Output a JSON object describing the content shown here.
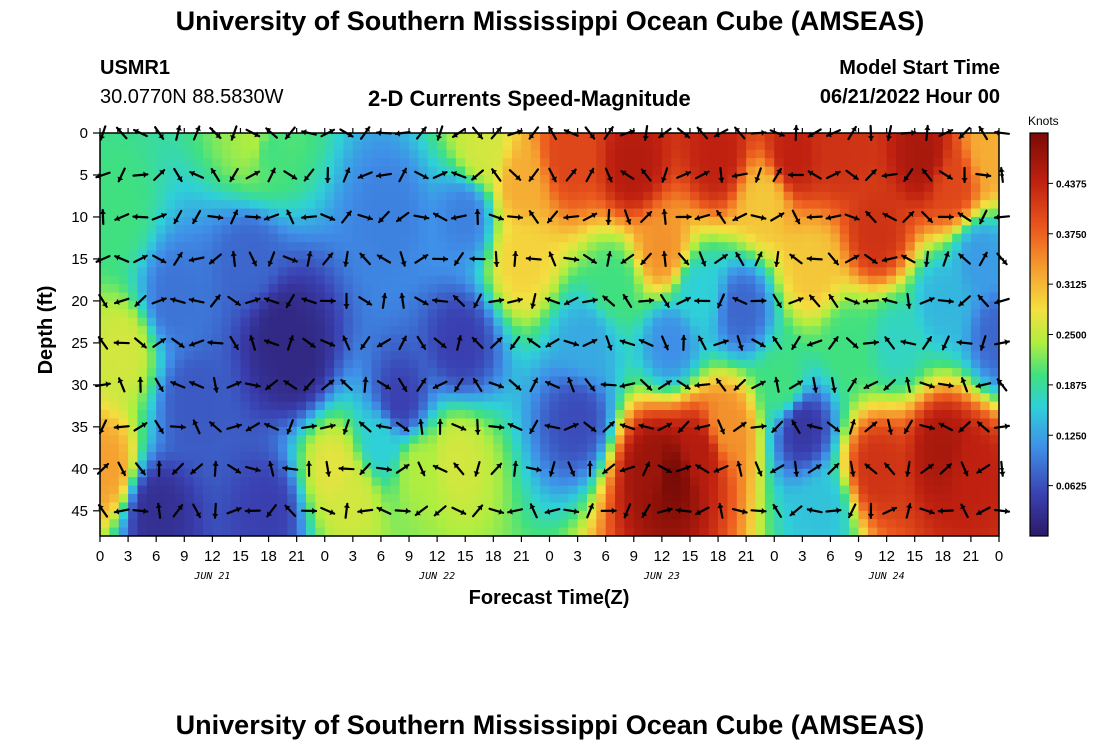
{
  "header": {
    "title_top": "University of Southern Mississippi Ocean Cube (AMSEAS)",
    "station": "USMR1",
    "coords": "30.0770N  88.5830W",
    "plot_title": "2-D Currents Speed-Magnitude",
    "start_label": "Model Start Time",
    "start_value": "06/21/2022 Hour 00",
    "title_bottom": "University of Southern Mississippi Ocean Cube (AMSEAS)"
  },
  "chart_data": {
    "type": "heatmap",
    "title": "2-D Currents Speed-Magnitude",
    "xlabel": "Forecast Time(Z)",
    "ylabel": "Depth (ft)",
    "x_hours": [
      0,
      96
    ],
    "x_ticks": [
      "0",
      "3",
      "6",
      "9",
      "12",
      "15",
      "18",
      "21",
      "0",
      "3",
      "6",
      "9",
      "12",
      "15",
      "18",
      "21",
      "0",
      "3",
      "6",
      "9",
      "12",
      "15",
      "18",
      "21",
      "0",
      "3",
      "6",
      "9",
      "12",
      "15",
      "18",
      "21",
      "0"
    ],
    "day_labels": [
      {
        "label": "JUN 21",
        "hour": 12
      },
      {
        "label": "JUN 22",
        "hour": 36
      },
      {
        "label": "JUN 23",
        "hour": 60
      },
      {
        "label": "JUN 24",
        "hour": 84
      }
    ],
    "depth_range": [
      0,
      48
    ],
    "depth_ticks": [
      0,
      5,
      10,
      15,
      20,
      25,
      30,
      35,
      40,
      45
    ],
    "colorbar_label": "Knots",
    "colorbar_ticks": [
      "0.0625",
      "0.1250",
      "0.1875",
      "0.2500",
      "0.3125",
      "0.3750",
      "0.4375"
    ],
    "colorbar_range": [
      0,
      0.5
    ],
    "speed_features": [
      {
        "hour": 0.5,
        "depth": 40,
        "speed": 0.33
      },
      {
        "hour": 1.5,
        "depth": 10,
        "speed": 0.2
      },
      {
        "hour": 2.5,
        "depth": 26,
        "speed": 0.26
      },
      {
        "hour": 6,
        "depth": 45,
        "speed": 0.03
      },
      {
        "hour": 8,
        "depth": 20,
        "speed": 0.09
      },
      {
        "hour": 10,
        "depth": 32,
        "speed": 0.07
      },
      {
        "hour": 16,
        "depth": 15,
        "speed": 0.08
      },
      {
        "hour": 16.5,
        "depth": 1,
        "speed": 0.24
      },
      {
        "hour": 18,
        "depth": 2,
        "speed": 0.2
      },
      {
        "hour": 18,
        "depth": 45,
        "speed": 0.05
      },
      {
        "hour": 19.5,
        "depth": 24,
        "speed": 0.02
      },
      {
        "hour": 21,
        "depth": 27,
        "speed": 0.02
      },
      {
        "hour": 25,
        "depth": 40,
        "speed": 0.27
      },
      {
        "hour": 27,
        "depth": 43,
        "speed": 0.26
      },
      {
        "hour": 30,
        "depth": 37,
        "speed": 0.16
      },
      {
        "hour": 31,
        "depth": 10,
        "speed": 0.1
      },
      {
        "hour": 32,
        "depth": 32,
        "speed": 0.05
      },
      {
        "hour": 34,
        "depth": 40,
        "speed": 0.24
      },
      {
        "hour": 38,
        "depth": 39,
        "speed": 0.26
      },
      {
        "hour": 38.5,
        "depth": 25,
        "speed": 0.05
      },
      {
        "hour": 39,
        "depth": 10,
        "speed": 0.1
      },
      {
        "hour": 41,
        "depth": 2,
        "speed": 0.26
      },
      {
        "hour": 45,
        "depth": 6,
        "speed": 0.32
      },
      {
        "hour": 45,
        "depth": 15,
        "speed": 0.29
      },
      {
        "hour": 50,
        "depth": 3,
        "speed": 0.4
      },
      {
        "hour": 51,
        "depth": 34,
        "speed": 0.06
      },
      {
        "hour": 52,
        "depth": 25,
        "speed": 0.13
      },
      {
        "hour": 55,
        "depth": 18,
        "speed": 0.2
      },
      {
        "hour": 57,
        "depth": 4,
        "speed": 0.45
      },
      {
        "hour": 59,
        "depth": 40,
        "speed": 0.47
      },
      {
        "hour": 61,
        "depth": 41,
        "speed": 0.5
      },
      {
        "hour": 64,
        "depth": 38,
        "speed": 0.45
      },
      {
        "hour": 60,
        "depth": 14,
        "speed": 0.34
      },
      {
        "hour": 61,
        "depth": 25,
        "speed": 0.11
      },
      {
        "hour": 64,
        "depth": 19,
        "speed": 0.16
      },
      {
        "hour": 66,
        "depth": 3,
        "speed": 0.44
      },
      {
        "hour": 67,
        "depth": 35,
        "speed": 0.34
      },
      {
        "hour": 68.5,
        "depth": 21,
        "speed": 0.08
      },
      {
        "hour": 71,
        "depth": 8,
        "speed": 0.3
      },
      {
        "hour": 73,
        "depth": 30,
        "speed": 0.2
      },
      {
        "hour": 74,
        "depth": 3,
        "speed": 0.44
      },
      {
        "hour": 75,
        "depth": 35,
        "speed": 0.04
      },
      {
        "hour": 76,
        "depth": 16,
        "speed": 0.3
      },
      {
        "hour": 77,
        "depth": 45,
        "speed": 0.15
      },
      {
        "hour": 79,
        "depth": 2,
        "speed": 0.42
      },
      {
        "hour": 80,
        "depth": 25,
        "speed": 0.2
      },
      {
        "hour": 83,
        "depth": 12,
        "speed": 0.42
      },
      {
        "hour": 83,
        "depth": 40,
        "speed": 0.42
      },
      {
        "hour": 85,
        "depth": 25,
        "speed": 0.17
      },
      {
        "hour": 88,
        "depth": 3,
        "speed": 0.46
      },
      {
        "hour": 90,
        "depth": 20,
        "speed": 0.14
      },
      {
        "hour": 90,
        "depth": 38,
        "speed": 0.46
      },
      {
        "hour": 91,
        "depth": 6,
        "speed": 0.4
      },
      {
        "hour": 93,
        "depth": 40,
        "speed": 0.44
      },
      {
        "hour": 94,
        "depth": 15,
        "speed": 0.12
      },
      {
        "hour": 95,
        "depth": 2,
        "speed": 0.32
      },
      {
        "hour": 96,
        "depth": 24,
        "speed": 0.08
      }
    ]
  }
}
